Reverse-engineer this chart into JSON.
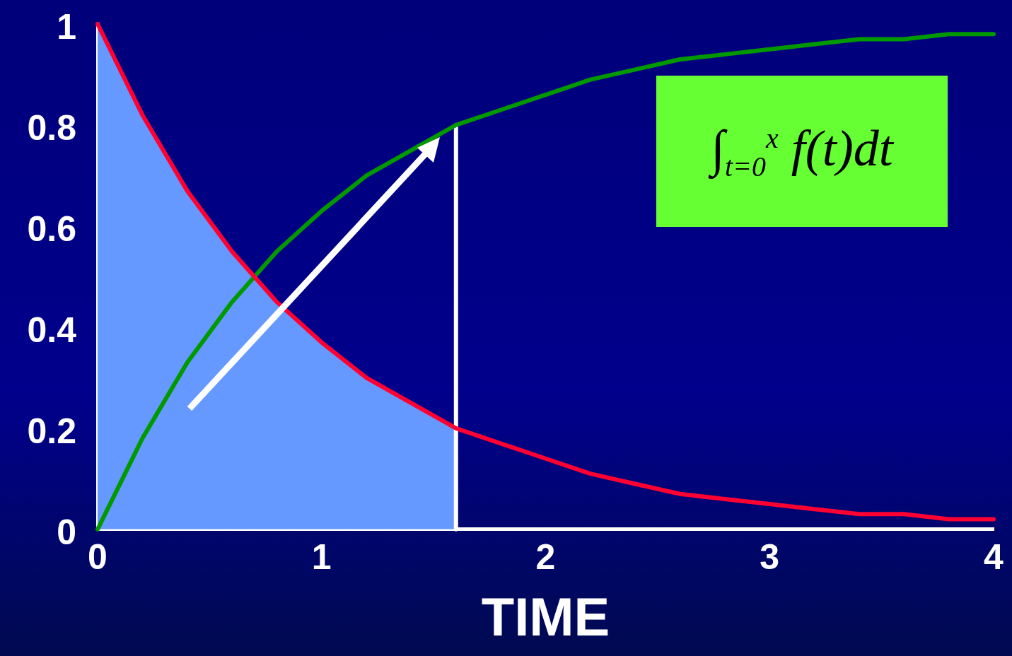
{
  "chart_data": {
    "type": "line",
    "xlabel": "TIME",
    "xlim": [
      0,
      4
    ],
    "xticks": [
      0,
      1,
      2,
      3,
      4
    ],
    "ylim": [
      0,
      1
    ],
    "yticks": [
      0,
      0.2,
      0.4,
      0.6,
      0.8,
      1
    ],
    "grid": false,
    "legend": false,
    "marker": "none",
    "line_style": "solid",
    "annotations": [
      "∫$_{t=0}$$^{x}$ f(t)dt"
    ],
    "series": [
      {
        "type": "area",
        "color": "#6699ff",
        "x": [
          0,
          0.2,
          0.4,
          0.6,
          0.8,
          1,
          1.2,
          1.4,
          1.6
        ],
        "values": [
          1,
          0.82,
          0.67,
          0.55,
          0.45,
          0.37,
          0.3,
          0.25,
          0.2
        ]
      },
      {
        "type": "line",
        "color": "#ff0033",
        "x": [
          0,
          0.2,
          0.4,
          0.6,
          0.8,
          1,
          1.2,
          1.4,
          1.6,
          1.8,
          2,
          2.2,
          2.4,
          2.6,
          2.8,
          3,
          3.2,
          3.4,
          3.6,
          3.8,
          4
        ],
        "values": [
          1,
          0.82,
          0.67,
          0.55,
          0.45,
          0.37,
          0.3,
          0.25,
          0.2,
          0.17,
          0.14,
          0.11,
          0.09,
          0.07,
          0.06,
          0.05,
          0.04,
          0.03,
          0.03,
          0.02,
          0.02
        ]
      },
      {
        "type": "line",
        "color": "#009900",
        "x": [
          0,
          0.2,
          0.4,
          0.6,
          0.8,
          1,
          1.2,
          1.4,
          1.6,
          1.8,
          2,
          2.2,
          2.4,
          2.6,
          2.8,
          3,
          3.2,
          3.4,
          3.6,
          3.8,
          4
        ],
        "values": [
          0,
          0.18,
          0.33,
          0.45,
          0.55,
          0.63,
          0.7,
          0.75,
          0.8,
          0.83,
          0.86,
          0.89,
          0.91,
          0.93,
          0.94,
          0.95,
          0.96,
          0.97,
          0.97,
          0.98,
          0.98
        ]
      },
      {
        "type": "line",
        "color": "#ffffff",
        "x": [
          1.6,
          1.6
        ],
        "values": [
          0,
          0.8
        ]
      }
    ]
  }
}
